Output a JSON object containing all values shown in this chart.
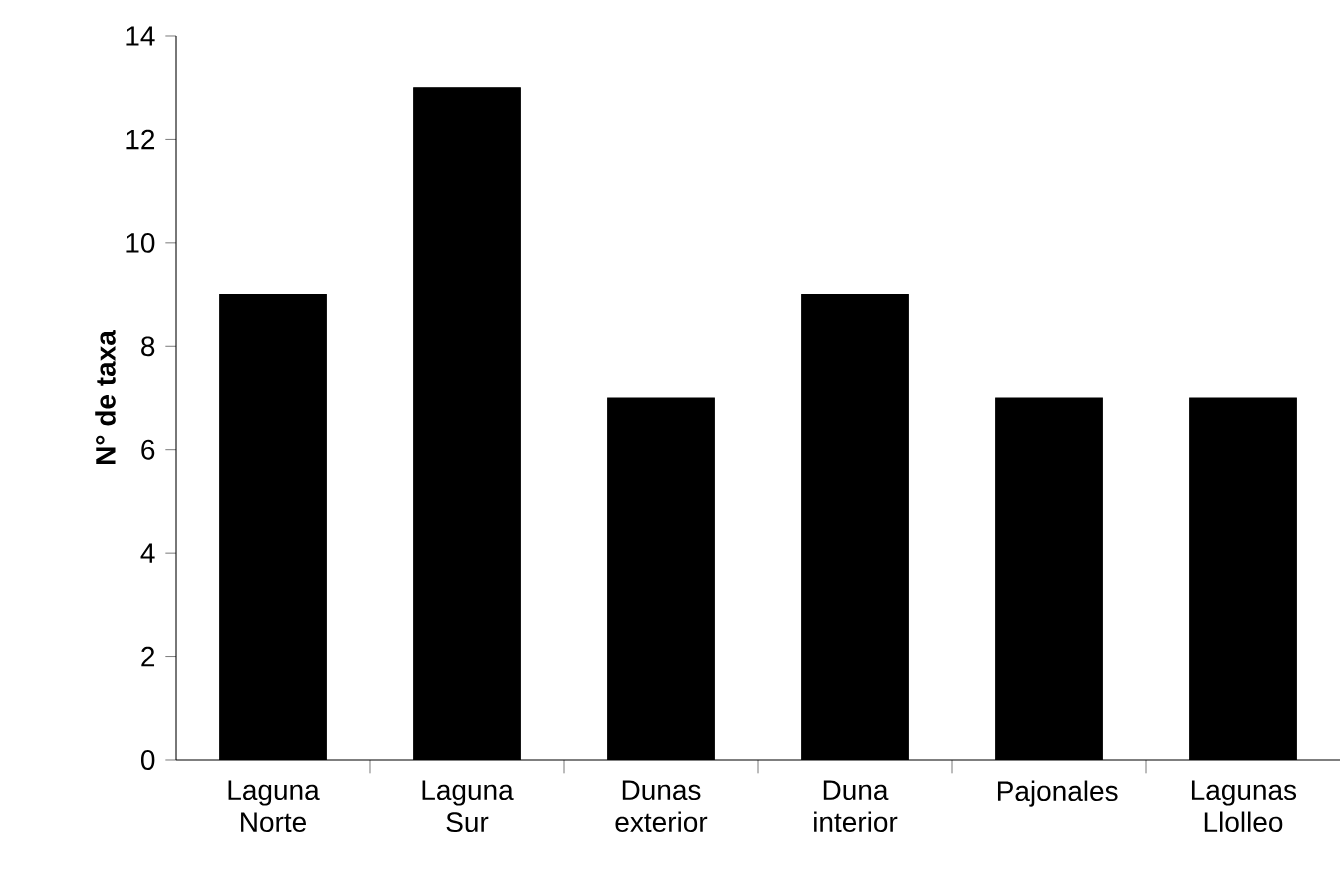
{
  "chart_data": {
    "type": "bar",
    "ylabel": "N° de taxa",
    "categories": [
      "Laguna Norte",
      "Laguna Sur",
      "Dunas exterior",
      "Duna interior",
      "Pajonales",
      "Lagunas Llolleo"
    ],
    "values": [
      9,
      13,
      7,
      9,
      7,
      7
    ],
    "color": "#000000",
    "ylim": [
      0,
      14
    ],
    "yticks": [
      0,
      2,
      4,
      6,
      8,
      10,
      12,
      14
    ],
    "grid": false
  }
}
